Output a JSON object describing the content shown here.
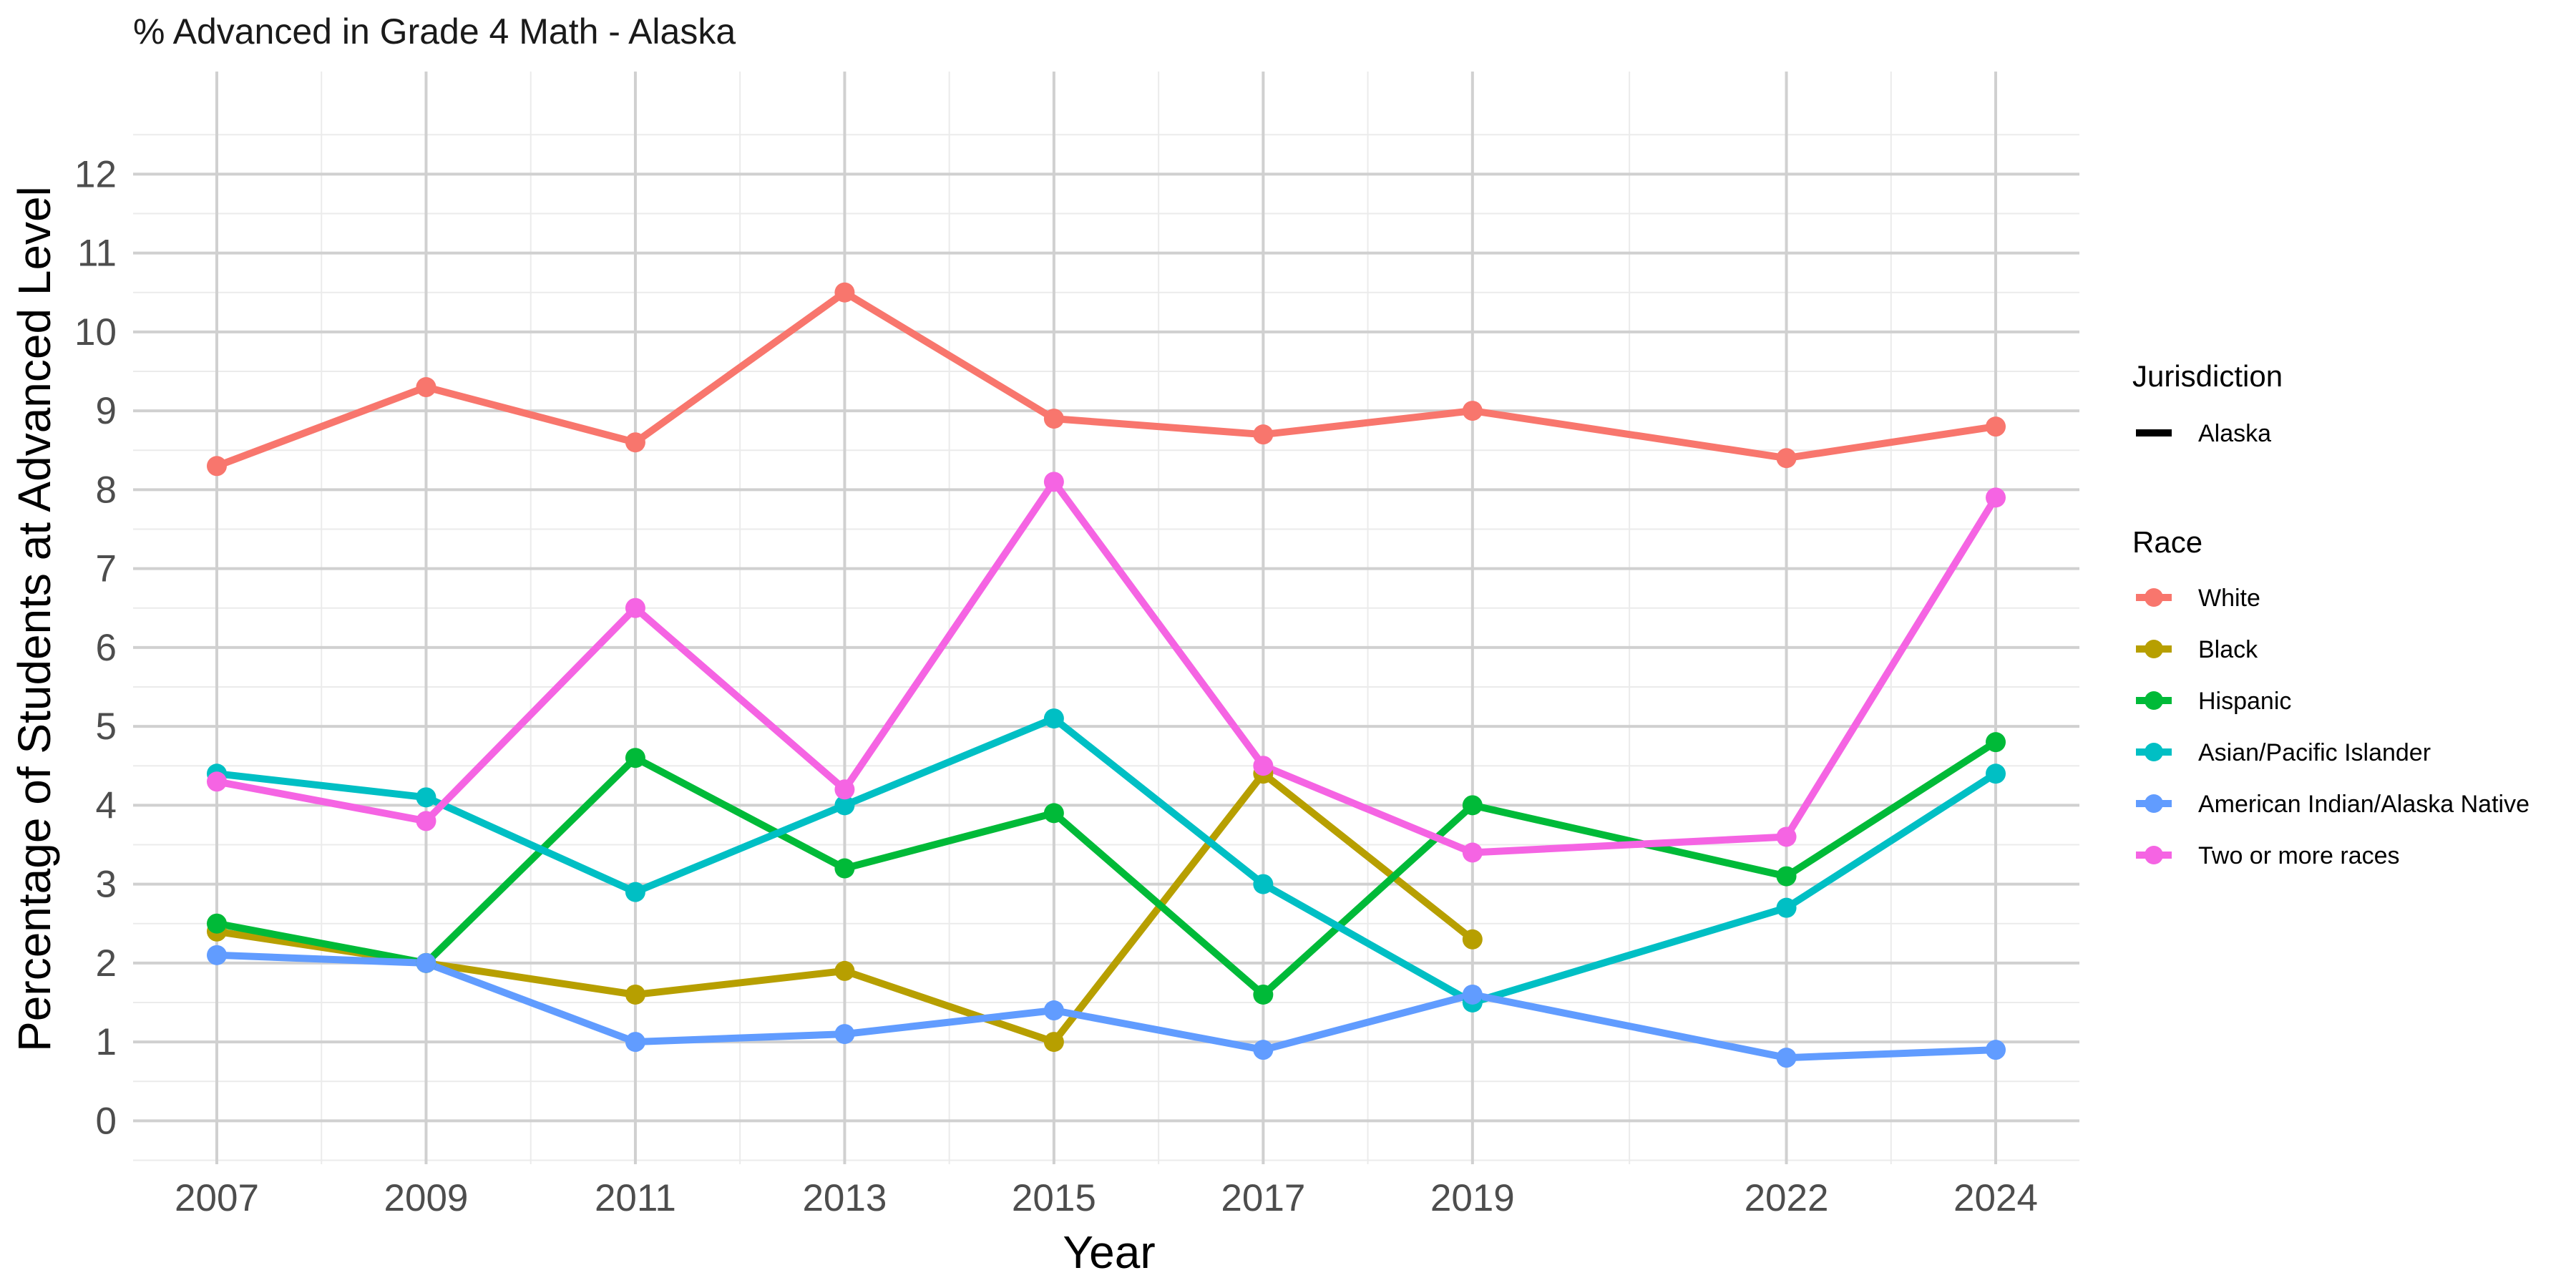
{
  "chart_data": {
    "type": "line",
    "title": "% Advanced in Grade 4 Math - Alaska",
    "xlabel": "Year",
    "ylabel": "Percentage of Students at Advanced Level",
    "x_ticks": [
      2007,
      2009,
      2011,
      2013,
      2015,
      2017,
      2019,
      2022,
      2024
    ],
    "y_ticks": [
      0,
      1,
      2,
      3,
      4,
      5,
      6,
      7,
      8,
      9,
      10,
      11,
      12
    ],
    "xlim": [
      2006.2,
      2024.8
    ],
    "ylim": [
      -0.55,
      13.3
    ],
    "grid": true,
    "legend_position": "right",
    "legend": {
      "jurisdiction_title": "Jurisdiction",
      "jurisdiction_items": [
        "Alaska"
      ],
      "race_title": "Race"
    },
    "series": [
      {
        "name": "White",
        "color": "#F8766D",
        "points": [
          [
            2007,
            8.3
          ],
          [
            2009,
            9.3
          ],
          [
            2011,
            8.6
          ],
          [
            2013,
            10.5
          ],
          [
            2015,
            8.9
          ],
          [
            2017,
            8.7
          ],
          [
            2019,
            9.0
          ],
          [
            2022,
            8.4
          ],
          [
            2024,
            8.8
          ]
        ]
      },
      {
        "name": "Black",
        "color": "#B79F00",
        "points": [
          [
            2007,
            2.4
          ],
          [
            2009,
            2.0
          ],
          [
            2011,
            1.6
          ],
          [
            2013,
            1.9
          ],
          [
            2015,
            1.0
          ],
          [
            2017,
            4.4
          ],
          [
            2019,
            2.3
          ]
        ]
      },
      {
        "name": "Hispanic",
        "color": "#00BA38",
        "points": [
          [
            2007,
            2.5
          ],
          [
            2009,
            2.0
          ],
          [
            2011,
            4.6
          ],
          [
            2013,
            3.2
          ],
          [
            2015,
            3.9
          ],
          [
            2017,
            1.6
          ],
          [
            2019,
            4.0
          ],
          [
            2022,
            3.1
          ],
          [
            2024,
            4.8
          ]
        ]
      },
      {
        "name": "Asian/Pacific Islander",
        "color": "#00BFC4",
        "points": [
          [
            2007,
            4.4
          ],
          [
            2009,
            4.1
          ],
          [
            2011,
            2.9
          ],
          [
            2013,
            4.0
          ],
          [
            2015,
            5.1
          ],
          [
            2017,
            3.0
          ],
          [
            2019,
            1.5
          ],
          [
            2022,
            2.7
          ],
          [
            2024,
            4.4
          ]
        ]
      },
      {
        "name": "American Indian/Alaska Native",
        "color": "#619CFF",
        "points": [
          [
            2007,
            2.1
          ],
          [
            2009,
            2.0
          ],
          [
            2011,
            1.0
          ],
          [
            2013,
            1.1
          ],
          [
            2015,
            1.4
          ],
          [
            2017,
            0.9
          ],
          [
            2019,
            1.6
          ],
          [
            2022,
            0.8
          ],
          [
            2024,
            0.9
          ]
        ]
      },
      {
        "name": "Two or more races",
        "color": "#F564E3",
        "points": [
          [
            2007,
            4.3
          ],
          [
            2009,
            3.8
          ],
          [
            2011,
            6.5
          ],
          [
            2013,
            4.2
          ],
          [
            2015,
            8.1
          ],
          [
            2017,
            4.5
          ],
          [
            2019,
            3.4
          ],
          [
            2022,
            3.6
          ],
          [
            2024,
            7.9
          ]
        ]
      }
    ]
  }
}
